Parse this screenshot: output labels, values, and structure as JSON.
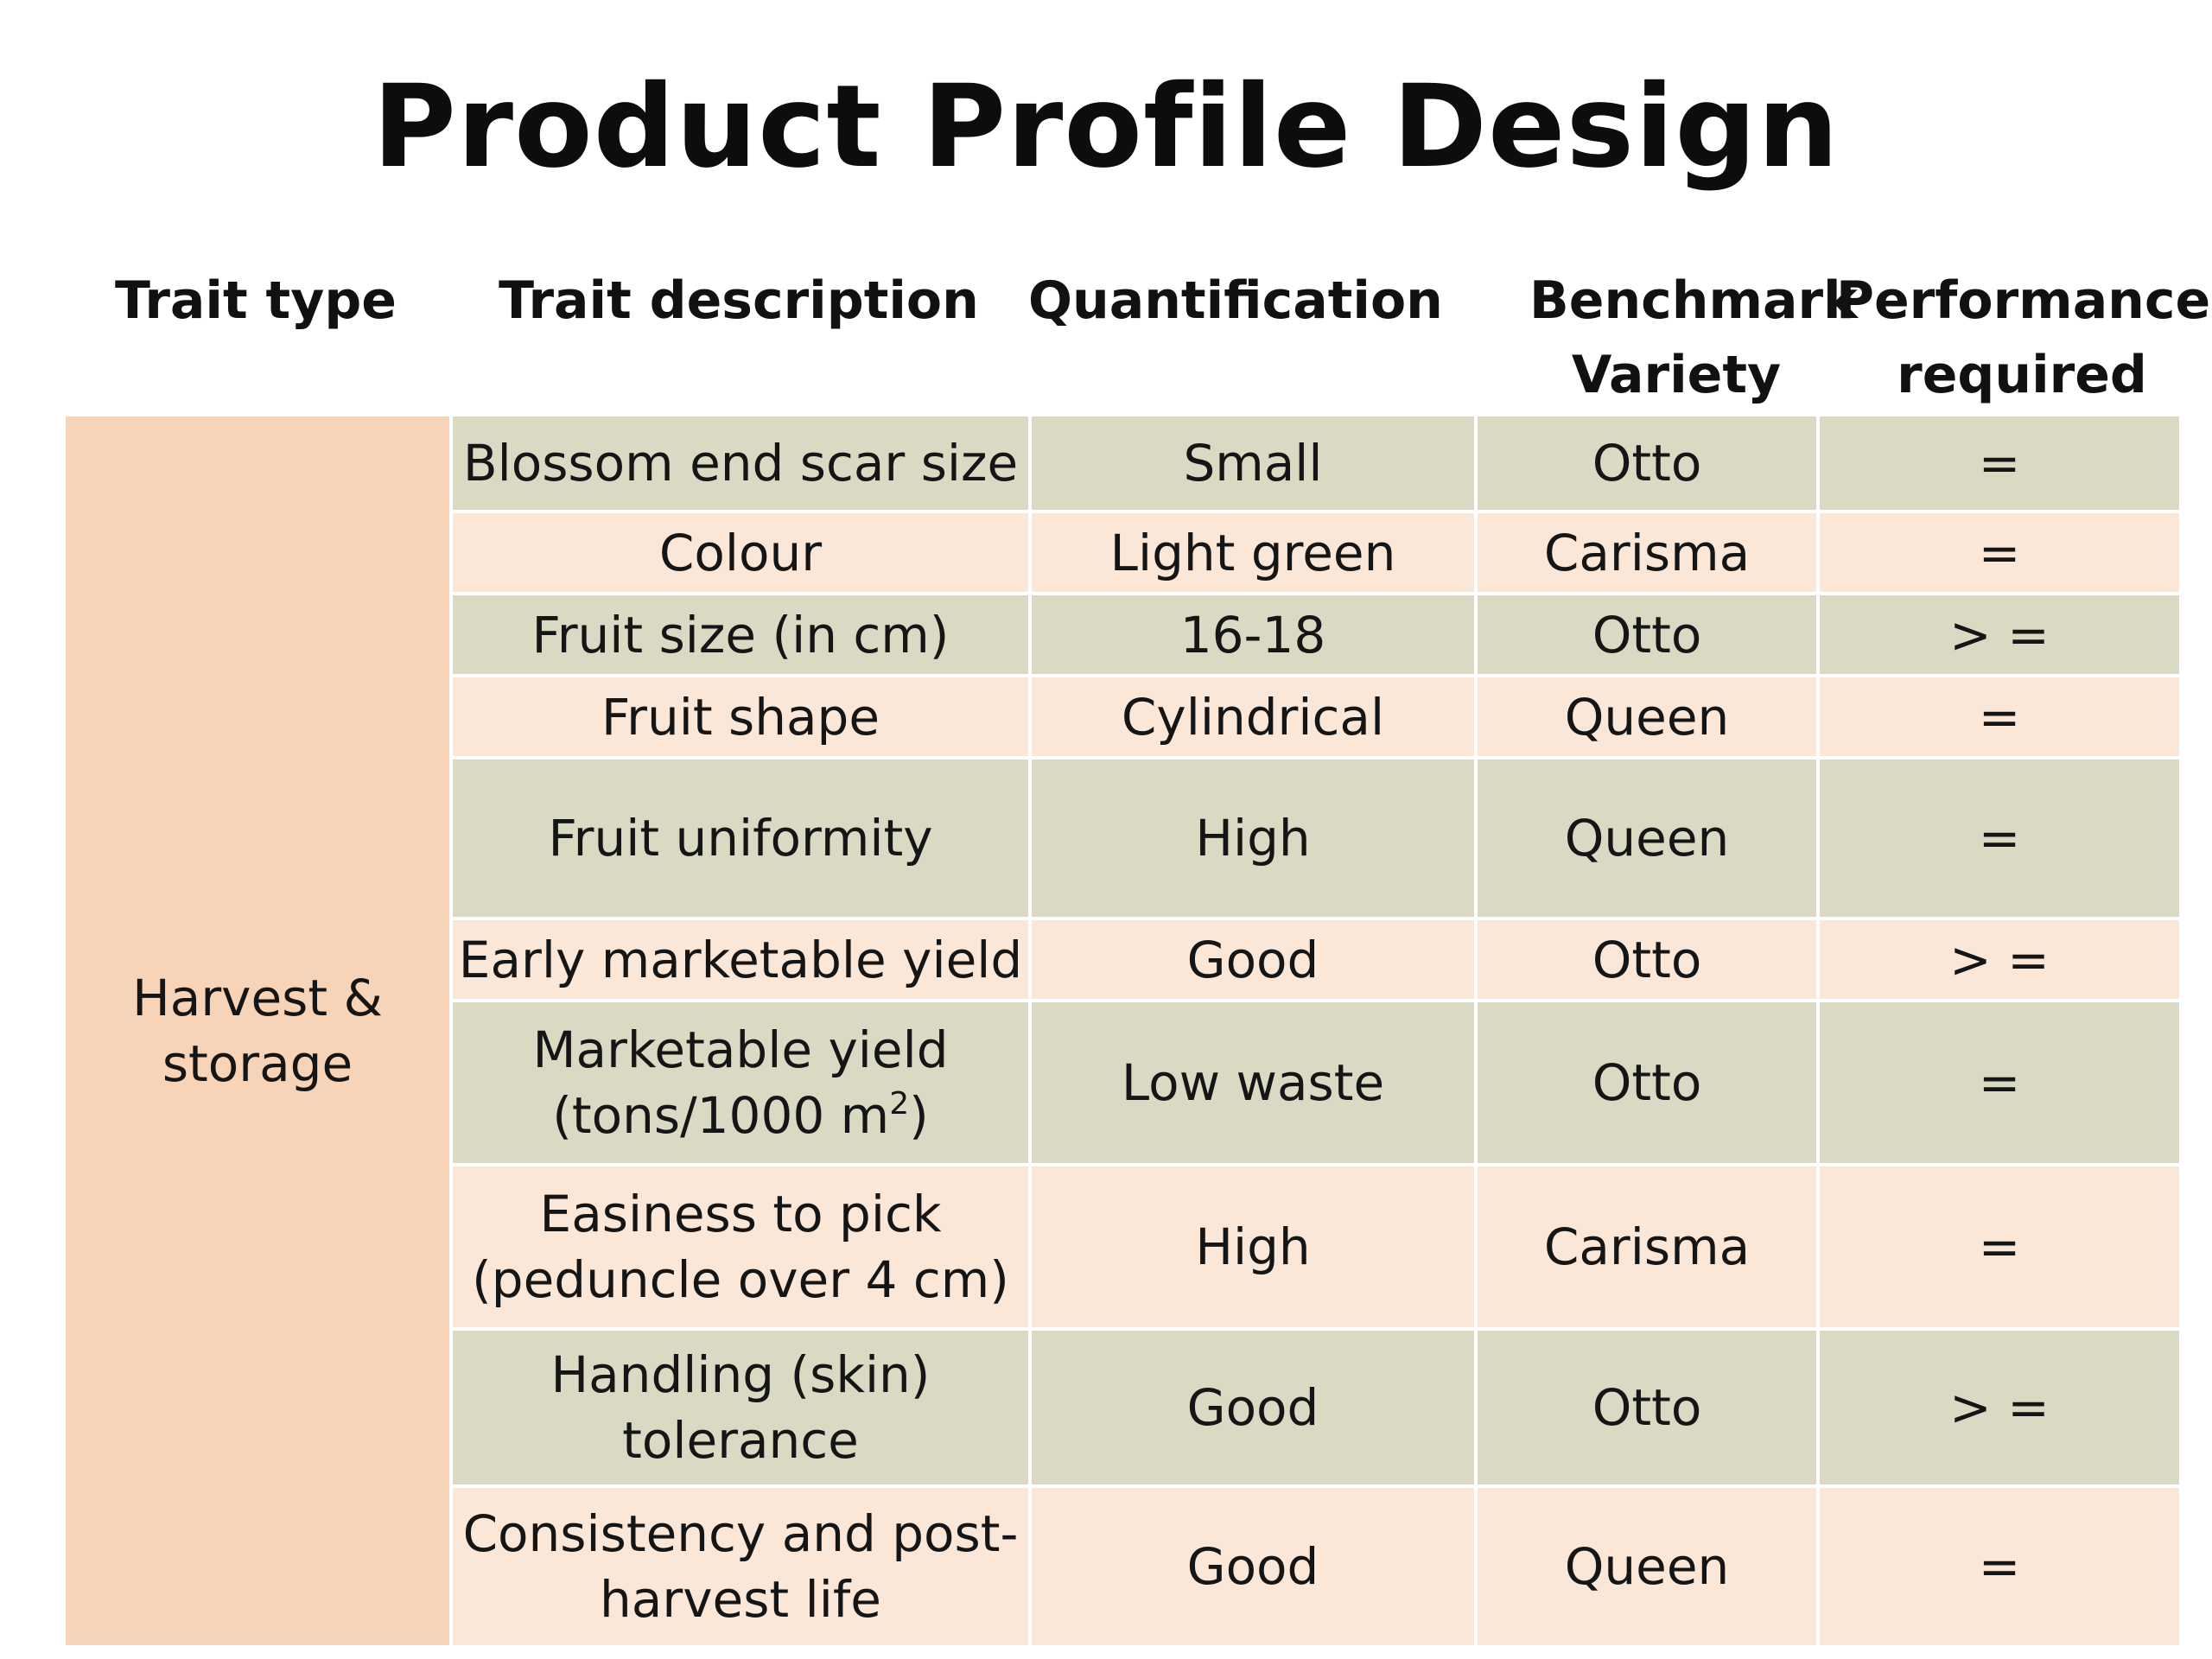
{
  "title": "Product Profile Design",
  "headers": {
    "trait_type": "Trait type",
    "trait_description": "Trait description",
    "quantification": "Quantification",
    "benchmark_line1": "Benchmark",
    "benchmark_line2": "Variety",
    "performance_line1": "Performance",
    "performance_line2": "required"
  },
  "trait_type": {
    "line1": "Harvest &",
    "line2": "storage"
  },
  "rows": [
    {
      "description": [
        "Blossom end scar size"
      ],
      "quantification": "Small",
      "benchmark": "Otto",
      "performance": "="
    },
    {
      "description": [
        "Colour"
      ],
      "quantification": "Light green",
      "benchmark": "Carisma",
      "performance": "="
    },
    {
      "description": [
        "Fruit size (in cm)"
      ],
      "quantification": "16-18",
      "benchmark": "Otto",
      "performance": "> ="
    },
    {
      "description": [
        "Fruit shape"
      ],
      "quantification": "Cylindrical",
      "benchmark": "Queen",
      "performance": "="
    },
    {
      "description": [
        "Fruit uniformity"
      ],
      "quantification": "High",
      "benchmark": "Queen",
      "performance": "="
    },
    {
      "description": [
        "Early marketable yield"
      ],
      "quantification": "Good",
      "benchmark": "Otto",
      "performance": "> ="
    },
    {
      "description": [
        "Marketable yield",
        "(tons/1000 m",
        "2",
        ")"
      ],
      "quantification": "Low waste",
      "benchmark": "Otto",
      "performance": "="
    },
    {
      "description": [
        "Easiness to pick",
        "(peduncle over 4 cm)"
      ],
      "quantification": "High",
      "benchmark": "Carisma",
      "performance": "="
    },
    {
      "description": [
        "Handling (skin)",
        "tolerance"
      ],
      "quantification": "Good",
      "benchmark": "Otto",
      "performance": "> ="
    },
    {
      "description": [
        "Consistency and post-",
        "harvest life"
      ],
      "quantification": "Good",
      "benchmark": "Queen",
      "performance": "="
    }
  ],
  "colors": {
    "trait_type_bg": "#f7d3b7",
    "row_dark_bg": "#dadac4",
    "row_light_bg": "#fbe7d8"
  }
}
